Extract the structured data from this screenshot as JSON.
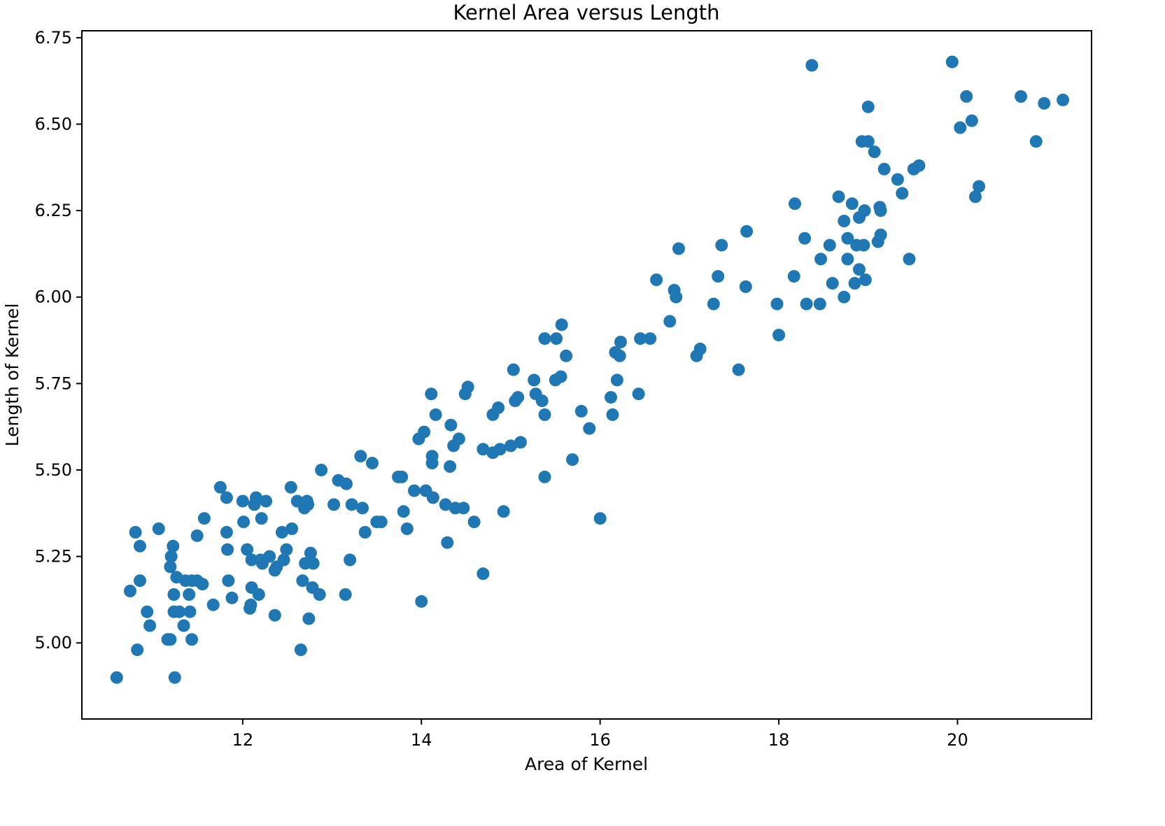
{
  "chart_data": {
    "type": "scatter",
    "title": "Kernel Area versus Length",
    "xlabel": "Area of Kernel",
    "ylabel": "Length of Kernel",
    "xlim": [
      10.2,
      21.5
    ],
    "ylim": [
      4.78,
      6.77
    ],
    "xticks": [
      12,
      14,
      16,
      18,
      20
    ],
    "yticks": [
      5.0,
      5.25,
      5.5,
      5.75,
      6.0,
      6.25,
      6.5,
      6.75
    ],
    "xtick_labels": [
      "12",
      "14",
      "16",
      "18",
      "20"
    ],
    "ytick_labels": [
      "5.00",
      "5.25",
      "5.50",
      "5.75",
      "6.00",
      "6.25",
      "6.50",
      "6.75"
    ],
    "grid": false,
    "legend": "none",
    "marker_color": "#1f77b4",
    "points": [
      [
        10.59,
        4.9
      ],
      [
        10.74,
        5.15
      ],
      [
        10.8,
        5.32
      ],
      [
        10.82,
        4.98
      ],
      [
        10.85,
        5.28
      ],
      [
        10.85,
        5.18
      ],
      [
        10.93,
        5.09
      ],
      [
        10.96,
        5.05
      ],
      [
        11.06,
        5.33
      ],
      [
        11.16,
        5.01
      ],
      [
        11.19,
        5.01
      ],
      [
        11.19,
        5.22
      ],
      [
        11.2,
        5.25
      ],
      [
        11.22,
        5.28
      ],
      [
        11.23,
        5.14
      ],
      [
        11.23,
        5.09
      ],
      [
        11.24,
        4.9
      ],
      [
        11.26,
        5.19
      ],
      [
        11.29,
        5.09
      ],
      [
        11.34,
        5.05
      ],
      [
        11.36,
        5.18
      ],
      [
        11.4,
        5.14
      ],
      [
        11.41,
        5.09
      ],
      [
        11.43,
        5.01
      ],
      [
        11.43,
        5.18
      ],
      [
        11.49,
        5.18
      ],
      [
        11.49,
        5.31
      ],
      [
        11.55,
        5.17
      ],
      [
        11.57,
        5.36
      ],
      [
        11.67,
        5.11
      ],
      [
        11.75,
        5.45
      ],
      [
        11.82,
        5.42
      ],
      [
        11.82,
        5.32
      ],
      [
        11.83,
        5.27
      ],
      [
        11.84,
        5.18
      ],
      [
        11.88,
        5.13
      ],
      [
        12.0,
        5.41
      ],
      [
        12.01,
        5.35
      ],
      [
        12.05,
        5.27
      ],
      [
        12.08,
        5.1
      ],
      [
        12.09,
        5.11
      ],
      [
        12.1,
        5.24
      ],
      [
        12.1,
        5.16
      ],
      [
        12.13,
        5.4
      ],
      [
        12.15,
        5.42
      ],
      [
        12.18,
        5.14
      ],
      [
        12.2,
        5.24
      ],
      [
        12.21,
        5.36
      ],
      [
        12.22,
        5.23
      ],
      [
        12.26,
        5.41
      ],
      [
        12.3,
        5.25
      ],
      [
        12.36,
        5.08
      ],
      [
        12.36,
        5.21
      ],
      [
        12.38,
        5.22
      ],
      [
        12.44,
        5.32
      ],
      [
        12.46,
        5.24
      ],
      [
        12.49,
        5.27
      ],
      [
        12.54,
        5.45
      ],
      [
        12.55,
        5.33
      ],
      [
        12.61,
        5.41
      ],
      [
        12.65,
        4.98
      ],
      [
        12.67,
        5.18
      ],
      [
        12.69,
        5.39
      ],
      [
        12.7,
        5.23
      ],
      [
        12.72,
        5.41
      ],
      [
        12.73,
        5.4
      ],
      [
        12.74,
        5.07
      ],
      [
        12.76,
        5.26
      ],
      [
        12.78,
        5.16
      ],
      [
        12.79,
        5.23
      ],
      [
        12.86,
        5.14
      ],
      [
        12.88,
        5.5
      ],
      [
        13.02,
        5.4
      ],
      [
        13.07,
        5.47
      ],
      [
        13.15,
        5.14
      ],
      [
        13.16,
        5.46
      ],
      [
        13.2,
        5.24
      ],
      [
        13.22,
        5.4
      ],
      [
        13.32,
        5.54
      ],
      [
        13.34,
        5.39
      ],
      [
        13.37,
        5.32
      ],
      [
        13.45,
        5.52
      ],
      [
        13.5,
        5.35
      ],
      [
        13.55,
        5.35
      ],
      [
        13.74,
        5.48
      ],
      [
        13.78,
        5.48
      ],
      [
        13.8,
        5.38
      ],
      [
        13.84,
        5.33
      ],
      [
        13.92,
        5.44
      ],
      [
        13.97,
        5.59
      ],
      [
        14.0,
        5.12
      ],
      [
        14.03,
        5.61
      ],
      [
        14.05,
        5.44
      ],
      [
        14.11,
        5.72
      ],
      [
        14.12,
        5.54
      ],
      [
        14.12,
        5.52
      ],
      [
        14.13,
        5.42
      ],
      [
        14.16,
        5.66
      ],
      [
        14.27,
        5.4
      ],
      [
        14.29,
        5.29
      ],
      [
        14.32,
        5.51
      ],
      [
        14.33,
        5.63
      ],
      [
        14.36,
        5.57
      ],
      [
        14.38,
        5.39
      ],
      [
        14.42,
        5.59
      ],
      [
        14.47,
        5.39
      ],
      [
        14.49,
        5.72
      ],
      [
        14.52,
        5.74
      ],
      [
        14.59,
        5.35
      ],
      [
        14.69,
        5.2
      ],
      [
        14.69,
        5.56
      ],
      [
        14.8,
        5.55
      ],
      [
        14.8,
        5.66
      ],
      [
        14.86,
        5.68
      ],
      [
        14.88,
        5.56
      ],
      [
        14.92,
        5.38
      ],
      [
        15.0,
        5.57
      ],
      [
        15.03,
        5.79
      ],
      [
        15.05,
        5.7
      ],
      [
        15.08,
        5.71
      ],
      [
        15.11,
        5.58
      ],
      [
        15.26,
        5.76
      ],
      [
        15.28,
        5.72
      ],
      [
        15.35,
        5.7
      ],
      [
        15.38,
        5.88
      ],
      [
        15.38,
        5.66
      ],
      [
        15.38,
        5.48
      ],
      [
        15.5,
        5.76
      ],
      [
        15.51,
        5.88
      ],
      [
        15.56,
        5.77
      ],
      [
        15.57,
        5.92
      ],
      [
        15.62,
        5.83
      ],
      [
        15.69,
        5.53
      ],
      [
        15.79,
        5.67
      ],
      [
        15.88,
        5.62
      ],
      [
        16.0,
        5.36
      ],
      [
        16.12,
        5.71
      ],
      [
        16.14,
        5.66
      ],
      [
        16.17,
        5.84
      ],
      [
        16.19,
        5.76
      ],
      [
        16.22,
        5.83
      ],
      [
        16.23,
        5.87
      ],
      [
        16.43,
        5.72
      ],
      [
        16.45,
        5.88
      ],
      [
        16.56,
        5.88
      ],
      [
        16.63,
        6.05
      ],
      [
        16.78,
        5.93
      ],
      [
        16.83,
        6.02
      ],
      [
        16.85,
        6.0
      ],
      [
        16.88,
        6.14
      ],
      [
        17.08,
        5.83
      ],
      [
        17.12,
        5.85
      ],
      [
        17.27,
        5.98
      ],
      [
        17.32,
        6.06
      ],
      [
        17.36,
        6.15
      ],
      [
        17.55,
        5.79
      ],
      [
        17.63,
        6.03
      ],
      [
        17.64,
        6.19
      ],
      [
        17.98,
        5.98
      ],
      [
        18.0,
        5.89
      ],
      [
        18.17,
        6.06
      ],
      [
        18.18,
        6.27
      ],
      [
        18.29,
        6.17
      ],
      [
        18.31,
        5.98
      ],
      [
        18.37,
        6.67
      ],
      [
        18.46,
        5.98
      ],
      [
        18.47,
        6.11
      ],
      [
        18.57,
        6.15
      ],
      [
        18.6,
        6.04
      ],
      [
        18.67,
        6.29
      ],
      [
        18.73,
        6.0
      ],
      [
        18.73,
        6.22
      ],
      [
        18.77,
        6.11
      ],
      [
        18.77,
        6.17
      ],
      [
        18.82,
        6.27
      ],
      [
        18.85,
        6.04
      ],
      [
        18.87,
        6.15
      ],
      [
        18.9,
        6.08
      ],
      [
        18.9,
        6.23
      ],
      [
        18.93,
        6.45
      ],
      [
        18.95,
        6.15
      ],
      [
        18.96,
        6.25
      ],
      [
        18.97,
        6.05
      ],
      [
        19.0,
        6.45
      ],
      [
        19.0,
        6.55
      ],
      [
        19.07,
        6.42
      ],
      [
        19.11,
        6.16
      ],
      [
        19.13,
        6.26
      ],
      [
        19.14,
        6.25
      ],
      [
        19.14,
        6.18
      ],
      [
        19.18,
        6.37
      ],
      [
        19.46,
        6.11
      ],
      [
        19.51,
        6.37
      ],
      [
        19.57,
        6.38
      ],
      [
        19.38,
        6.3
      ],
      [
        19.33,
        6.34
      ],
      [
        19.94,
        6.68
      ],
      [
        20.03,
        6.49
      ],
      [
        20.1,
        6.58
      ],
      [
        20.16,
        6.51
      ],
      [
        20.2,
        6.29
      ],
      [
        20.24,
        6.32
      ],
      [
        20.71,
        6.58
      ],
      [
        20.88,
        6.45
      ],
      [
        20.97,
        6.56
      ],
      [
        21.18,
        6.57
      ]
    ]
  }
}
